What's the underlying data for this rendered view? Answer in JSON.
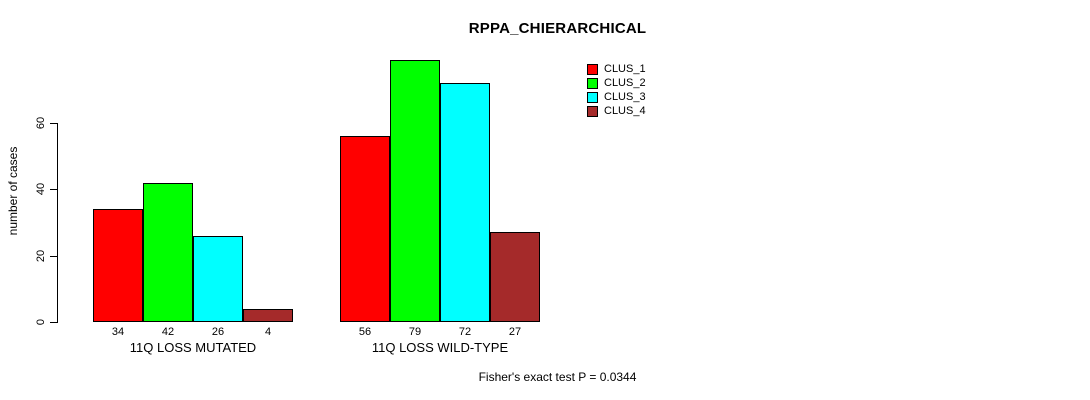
{
  "chart_data": {
    "type": "bar",
    "title": "RPPA_CHIERARCHICAL",
    "ylabel": "number of cases",
    "xlabel": "",
    "ylim": [
      0,
      60
    ],
    "yticks": [
      0,
      20,
      40,
      60
    ],
    "grid": false,
    "legend_position": "top-right",
    "categories": [
      "11Q LOSS MUTATED",
      "11Q LOSS WILD-TYPE"
    ],
    "series": [
      {
        "name": "CLUS_1",
        "color": "#FF0000",
        "values": [
          34,
          56
        ]
      },
      {
        "name": "CLUS_2",
        "color": "#00FF00",
        "values": [
          42,
          79
        ]
      },
      {
        "name": "CLUS_3",
        "color": "#00FFFF",
        "values": [
          26,
          72
        ]
      },
      {
        "name": "CLUS_4",
        "color": "#A52A2A",
        "values": [
          4,
          27
        ]
      }
    ],
    "bar_value_labels": true,
    "annotation": "Fisher's exact test P = 0.0344"
  }
}
